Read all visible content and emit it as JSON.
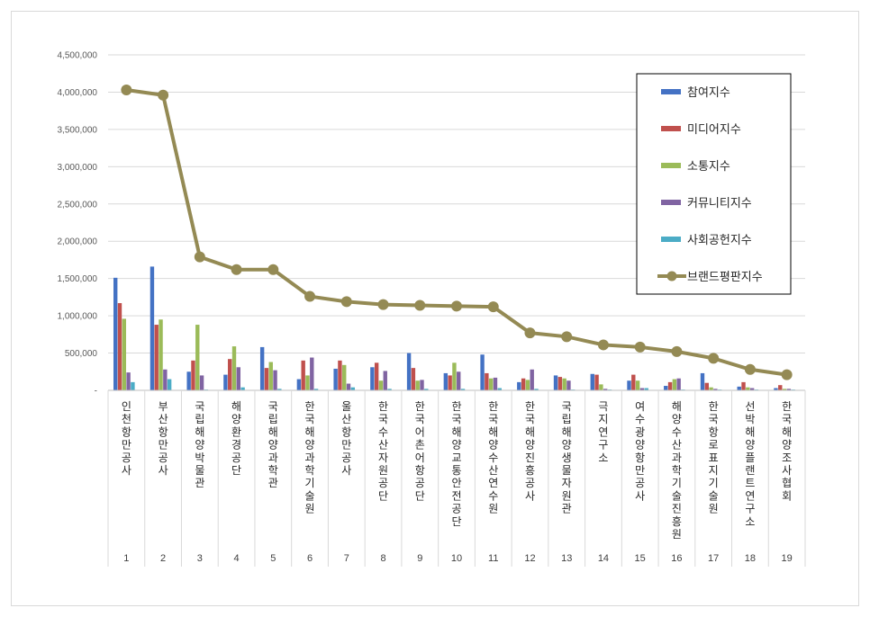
{
  "chart_data": {
    "type": "bar",
    "categories": [
      "인천항만공사",
      "부산항만공사",
      "국립해양박물관",
      "해양환경공단",
      "국립해양과학관",
      "한국해양과학기술원",
      "울산항만공사",
      "한국수산자원공단",
      "한국어촌어항공단",
      "한국해양교통안전공단",
      "한국해양수산연수원",
      "한국해양진흥공사",
      "국립해양생물자원관",
      "극지연구소",
      "여수광양항만공사",
      "해양수산과학기술진흥원",
      "한국항로표지기술원",
      "선박해양플랜트연구소",
      "한국해양조사협회"
    ],
    "index_labels": [
      "1",
      "2",
      "3",
      "4",
      "5",
      "6",
      "7",
      "8",
      "9",
      "10",
      "11",
      "12",
      "13",
      "14",
      "15",
      "16",
      "17",
      "18",
      "19"
    ],
    "y_ticks": [
      "-",
      "500,000",
      "1,000,000",
      "1,500,000",
      "2,000,000",
      "2,500,000",
      "3,000,000",
      "3,500,000",
      "4,000,000",
      "4,500,000"
    ],
    "ylim": [
      0,
      4500000
    ],
    "grid": true,
    "legend_position": "top-right",
    "series": [
      {
        "name": "참여지수",
        "color": "#4472C4",
        "kind": "bar",
        "values": [
          1510000,
          1660000,
          250000,
          210000,
          580000,
          150000,
          290000,
          310000,
          500000,
          230000,
          480000,
          110000,
          200000,
          220000,
          130000,
          60000,
          230000,
          50000,
          30000
        ]
      },
      {
        "name": "미디어지수",
        "color": "#C0504D",
        "kind": "bar",
        "values": [
          1170000,
          880000,
          400000,
          420000,
          300000,
          400000,
          400000,
          370000,
          300000,
          200000,
          230000,
          160000,
          180000,
          210000,
          210000,
          110000,
          100000,
          110000,
          70000
        ]
      },
      {
        "name": "소통지수",
        "color": "#9BBB59",
        "kind": "bar",
        "values": [
          960000,
          950000,
          880000,
          590000,
          380000,
          200000,
          340000,
          130000,
          130000,
          370000,
          160000,
          140000,
          160000,
          80000,
          130000,
          150000,
          40000,
          40000,
          20000
        ]
      },
      {
        "name": "커뮤니티지수",
        "color": "#8064A2",
        "kind": "bar",
        "values": [
          240000,
          280000,
          200000,
          310000,
          270000,
          440000,
          90000,
          260000,
          140000,
          250000,
          170000,
          280000,
          130000,
          20000,
          30000,
          160000,
          20000,
          30000,
          20000
        ]
      },
      {
        "name": "사회공헌지수",
        "color": "#4BACC6",
        "kind": "bar",
        "values": [
          110000,
          150000,
          10000,
          40000,
          20000,
          20000,
          40000,
          20000,
          20000,
          20000,
          30000,
          20000,
          10000,
          10000,
          30000,
          10000,
          10000,
          10000,
          10000
        ]
      },
      {
        "name": "브랜드평판지수",
        "color": "#948A54",
        "kind": "line",
        "values": [
          4030000,
          3960000,
          1790000,
          1620000,
          1620000,
          1260000,
          1190000,
          1150000,
          1140000,
          1130000,
          1120000,
          770000,
          720000,
          610000,
          580000,
          520000,
          430000,
          280000,
          210000
        ]
      }
    ]
  }
}
